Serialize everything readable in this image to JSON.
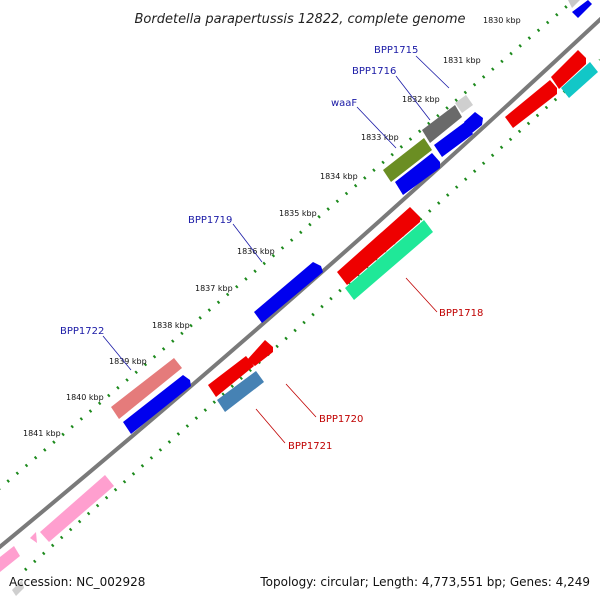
{
  "title": "Bordetella parapertussis 12822, complete genome",
  "footer": {
    "accession": "Accession: NC_002928",
    "topology": "Topology: circular; Length: 4,773,551 bp; Genes: 4,249"
  },
  "scale_labels": [
    "1830 kbp",
    "1831 kbp",
    "1832 kbp",
    "1833 kbp",
    "1834 kbp",
    "1835 kbp",
    "1836 kbp",
    "1837 kbp",
    "1838 kbp",
    "1839 kbp",
    "1840 kbp",
    "1841 kbp"
  ],
  "gene_labels": {
    "BPP1715": "BPP1715",
    "BPP1716": "BPP1716",
    "waaF": "waaF",
    "BPP1719": "BPP1719",
    "BPP1722": "BPP1722",
    "BPP1718": "BPP1718",
    "BPP1720": "BPP1720",
    "BPP1721": "BPP1721"
  },
  "colors": {
    "red": "#ee0000",
    "blue": "#0000ee",
    "grey": "#8c8c8c",
    "pink": "#ff9fcf",
    "salmon": "#e57b7b",
    "olive": "#6b8e23",
    "steel": "#4682b4",
    "cyan": "#12c7c7",
    "mint": "#1fe898",
    "green_tick": "#1d8a1d",
    "backbone": "#888888"
  }
}
